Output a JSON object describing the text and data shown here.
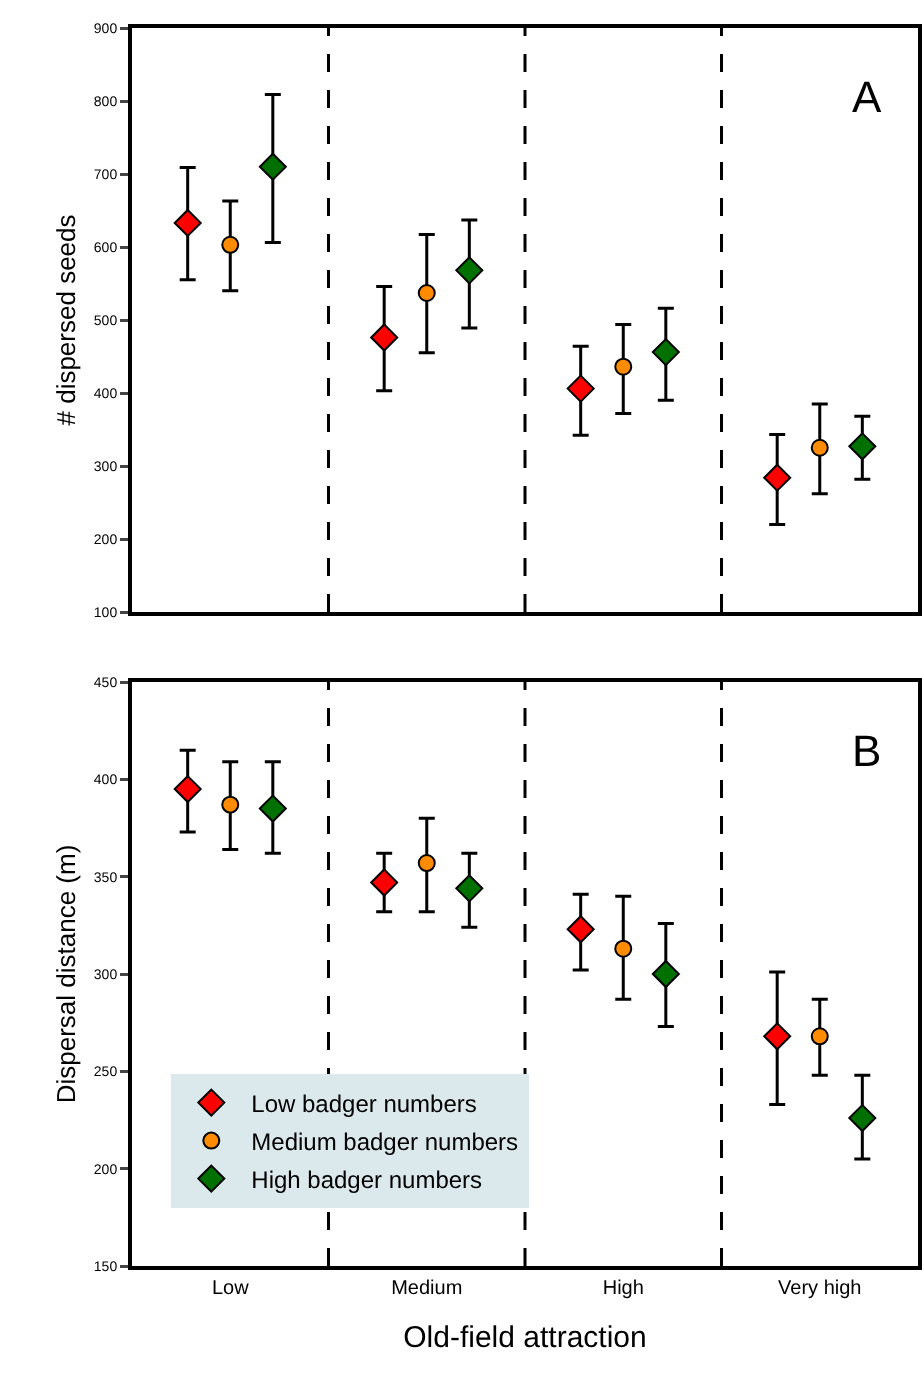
{
  "chart_data": [
    {
      "type": "scatter",
      "categories": [
        null,
        null,
        null,
        null
      ],
      "ylabel": "# dispersed seeds",
      "ylim": [
        100,
        900
      ],
      "yticks": [
        100,
        200,
        300,
        400,
        500,
        600,
        700,
        800,
        900
      ],
      "grid": false,
      "tick_labels": "y",
      "annotations": [
        "A"
      ],
      "series": [
        {
          "color": "#ff0000",
          "marker": "diamond",
          "values": [
            633,
            476,
            406,
            284
          ],
          "errors": [
            [
              555,
              709
            ],
            [
              403,
              546
            ],
            [
              342,
              464
            ],
            [
              220,
              343
            ]
          ]
        },
        {
          "color": "#ff8c00",
          "marker": "circle",
          "values": [
            603,
            537,
            436,
            325
          ],
          "errors": [
            [
              540,
              663
            ],
            [
              455,
              617
            ],
            [
              372,
              494
            ],
            [
              262,
              385
            ]
          ]
        },
        {
          "color": "#007000",
          "marker": "diamond",
          "values": [
            710,
            568,
            456,
            327
          ],
          "errors": [
            [
              606,
              809
            ],
            [
              489,
              637
            ],
            [
              390,
              516
            ],
            [
              282,
              368
            ]
          ]
        }
      ]
    },
    {
      "type": "scatter",
      "categories": [
        "Low",
        "Medium",
        "High",
        "Very high"
      ],
      "xlabel": "Old-field attraction",
      "ylabel": "Dispersal distance (m)",
      "ylim": [
        150,
        450
      ],
      "yticks": [
        150,
        200,
        250,
        300,
        350,
        400,
        450
      ],
      "grid": false,
      "legend": "bottom left",
      "annotations": [
        "B"
      ],
      "series": [
        {
          "name": "Low badger numbers",
          "color": "#ff0000",
          "marker": "diamond",
          "values": [
            395,
            347,
            323,
            268
          ],
          "errors": [
            [
              373,
              415
            ],
            [
              332,
              362
            ],
            [
              302,
              341
            ],
            [
              233,
              301
            ]
          ]
        },
        {
          "name": "Medium badger numbers",
          "color": "#ff8c00",
          "marker": "circle",
          "values": [
            387,
            357,
            313,
            268
          ],
          "errors": [
            [
              364,
              409
            ],
            [
              332,
              380
            ],
            [
              287,
              340
            ],
            [
              248,
              287
            ]
          ]
        },
        {
          "name": "High badger numbers",
          "color": "#007000",
          "marker": "diamond",
          "values": [
            385,
            344,
            300,
            226
          ],
          "errors": [
            [
              362,
              409
            ],
            [
              324,
              362
            ],
            [
              273,
              326
            ],
            [
              205,
              248
            ]
          ]
        }
      ]
    }
  ]
}
